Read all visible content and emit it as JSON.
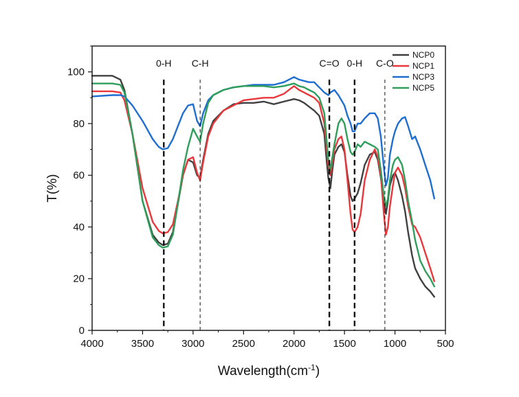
{
  "chart_data": {
    "type": "line",
    "title": "",
    "xlabel": "Wavelength(cm",
    "xlabel_sup": "-1",
    "xlabel_suffix": ")",
    "ylabel": "T(%)",
    "xlim": [
      4000,
      500
    ],
    "ylim": [
      0,
      110
    ],
    "x_ticks": [
      4000,
      3500,
      3000,
      2500,
      2000,
      1500,
      1000,
      500
    ],
    "y_ticks": [
      0,
      20,
      40,
      60,
      80,
      100
    ],
    "grid": false,
    "legend_position": "top-right",
    "series": [
      {
        "name": "NCP0",
        "color": "#404040",
        "x": [
          4000,
          3800,
          3720,
          3680,
          3600,
          3500,
          3400,
          3340,
          3300,
          3250,
          3200,
          3150,
          3100,
          3050,
          3000,
          2960,
          2930,
          2900,
          2850,
          2800,
          2700,
          2600,
          2500,
          2400,
          2300,
          2200,
          2100,
          2000,
          1950,
          1900,
          1850,
          1800,
          1750,
          1700,
          1680,
          1660,
          1640,
          1620,
          1600,
          1560,
          1530,
          1500,
          1470,
          1440,
          1420,
          1400,
          1370,
          1340,
          1300,
          1250,
          1200,
          1170,
          1140,
          1110,
          1090,
          1070,
          1050,
          1020,
          1000,
          970,
          930,
          900,
          870,
          830,
          800,
          750,
          700,
          650,
          610
        ],
        "y": [
          98.5,
          98.5,
          97,
          93,
          76,
          50,
          37,
          34,
          33,
          33.5,
          38,
          49,
          60,
          66,
          65,
          60,
          59,
          66,
          76,
          81,
          85,
          87.5,
          88,
          88,
          88.5,
          87.5,
          88.5,
          89.5,
          89,
          88,
          86.5,
          85,
          83,
          76,
          67,
          59,
          55,
          62,
          68,
          71,
          72,
          69,
          60,
          52,
          50,
          51,
          53,
          57,
          64,
          68,
          69,
          66,
          59,
          50,
          45,
          50,
          56,
          60,
          61,
          58,
          52,
          46,
          38,
          29,
          24,
          20,
          17,
          15,
          13
        ]
      },
      {
        "name": "NCP1",
        "color": "#e8383c",
        "x": [
          4000,
          3800,
          3720,
          3680,
          3600,
          3500,
          3400,
          3340,
          3300,
          3250,
          3200,
          3150,
          3100,
          3050,
          3000,
          2960,
          2930,
          2900,
          2850,
          2800,
          2700,
          2600,
          2500,
          2400,
          2300,
          2200,
          2100,
          2000,
          1950,
          1900,
          1850,
          1800,
          1750,
          1700,
          1680,
          1660,
          1640,
          1620,
          1600,
          1560,
          1530,
          1500,
          1470,
          1440,
          1420,
          1400,
          1370,
          1340,
          1300,
          1250,
          1200,
          1170,
          1140,
          1110,
          1090,
          1070,
          1050,
          1020,
          1000,
          970,
          930,
          900,
          870,
          830,
          800,
          750,
          700,
          650,
          610
        ],
        "y": [
          92.5,
          92.5,
          92,
          89,
          76,
          55,
          42,
          38.5,
          37.5,
          38,
          41,
          50,
          60,
          66,
          67,
          61,
          58,
          65,
          75,
          80,
          85,
          87,
          89,
          89.5,
          90,
          90,
          91.5,
          94.5,
          93,
          92,
          91,
          90,
          88,
          80,
          72,
          64,
          60,
          65,
          70,
          74,
          75,
          70,
          58,
          45,
          39,
          38,
          40,
          45,
          58,
          66,
          70,
          67,
          60,
          45,
          37,
          40,
          48,
          56,
          61,
          63,
          60,
          55,
          48,
          41,
          40,
          36,
          30,
          24,
          19
        ]
      },
      {
        "name": "NCP3",
        "color": "#1e6ed2",
        "x": [
          4000,
          3800,
          3720,
          3680,
          3600,
          3500,
          3400,
          3340,
          3300,
          3250,
          3200,
          3150,
          3100,
          3050,
          3000,
          2960,
          2930,
          2900,
          2850,
          2800,
          2700,
          2600,
          2500,
          2400,
          2300,
          2200,
          2100,
          2000,
          1950,
          1900,
          1850,
          1800,
          1750,
          1700,
          1680,
          1660,
          1640,
          1620,
          1600,
          1560,
          1530,
          1500,
          1470,
          1440,
          1420,
          1400,
          1370,
          1340,
          1300,
          1250,
          1200,
          1170,
          1140,
          1110,
          1090,
          1070,
          1050,
          1020,
          1000,
          970,
          930,
          900,
          870,
          830,
          800,
          750,
          700,
          650,
          610
        ],
        "y": [
          90.5,
          91,
          91,
          90.5,
          87,
          81,
          74,
          71,
          70,
          70.5,
          74,
          79,
          84,
          87,
          87.5,
          81,
          79,
          84,
          89,
          91,
          93,
          94,
          94.5,
          95,
          95,
          95,
          96,
          98,
          97,
          96.5,
          96,
          96,
          94,
          92,
          91.5,
          91,
          92,
          92.5,
          93,
          91,
          89,
          87,
          83,
          80,
          77,
          77,
          80,
          80,
          82,
          84,
          84,
          82,
          75,
          63,
          56,
          59,
          68,
          74,
          77,
          80,
          82,
          82.5,
          79,
          74,
          75,
          70,
          64,
          58,
          51
        ]
      },
      {
        "name": "NCP5",
        "color": "#2e9e5a",
        "x": [
          4000,
          3800,
          3720,
          3680,
          3600,
          3500,
          3400,
          3340,
          3300,
          3250,
          3200,
          3150,
          3100,
          3050,
          3000,
          2960,
          2930,
          2900,
          2850,
          2800,
          2700,
          2600,
          2500,
          2400,
          2300,
          2200,
          2100,
          2000,
          1950,
          1900,
          1850,
          1800,
          1750,
          1700,
          1680,
          1660,
          1640,
          1620,
          1600,
          1560,
          1530,
          1500,
          1470,
          1440,
          1420,
          1400,
          1370,
          1340,
          1300,
          1250,
          1200,
          1170,
          1140,
          1110,
          1090,
          1070,
          1050,
          1020,
          1000,
          970,
          930,
          900,
          870,
          830,
          800,
          750,
          700,
          650,
          610
        ],
        "y": [
          95.5,
          95.5,
          95,
          92,
          76,
          50,
          36,
          33,
          32,
          32.5,
          37,
          49,
          62,
          71,
          78,
          75,
          73,
          80,
          88,
          91,
          93,
          94,
          94.5,
          94.5,
          94.5,
          94,
          94.5,
          95.5,
          94.5,
          94,
          93,
          92,
          90,
          84,
          75,
          66,
          62,
          67,
          72,
          80,
          82,
          80,
          74,
          69,
          68,
          69,
          72,
          71,
          73,
          72,
          71,
          70,
          62,
          52,
          48,
          51,
          58,
          64,
          66,
          67,
          64,
          58,
          50,
          42,
          35,
          27,
          23,
          20,
          17
        ]
      }
    ],
    "annotations": [
      {
        "label": "0-H",
        "x": 3290,
        "style": "bold"
      },
      {
        "label": "C-H",
        "x": 2930,
        "style": "thin"
      },
      {
        "label": "C=O",
        "x": 1650,
        "style": "bold"
      },
      {
        "label": "0-H",
        "x": 1400,
        "style": "bold"
      },
      {
        "label": "C-O",
        "x": 1100,
        "style": "thin"
      }
    ]
  }
}
